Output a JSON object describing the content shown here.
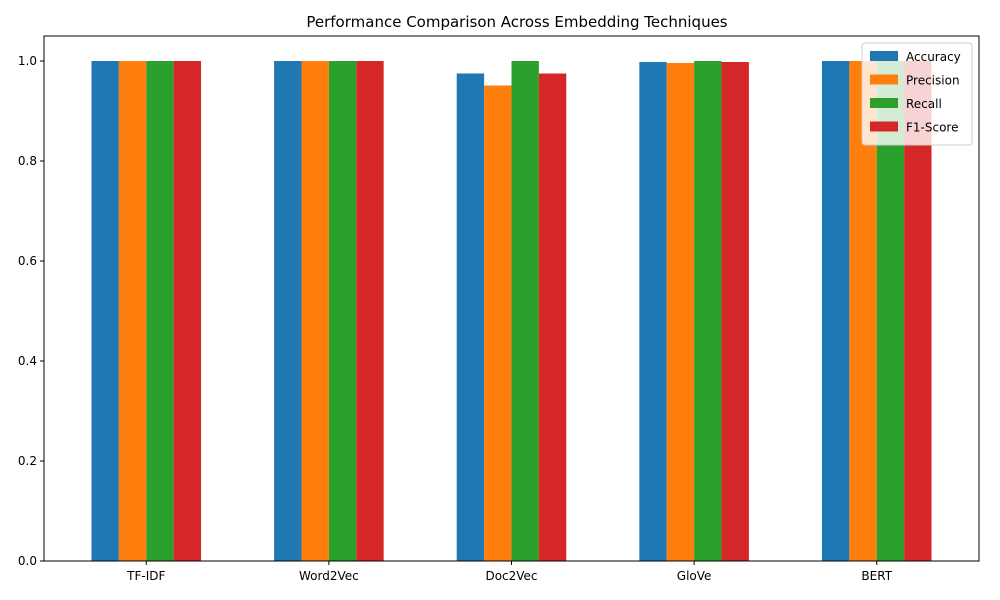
{
  "chart_data": {
    "type": "bar",
    "title": "Performance Comparison Across Embedding Techniques",
    "xlabel": "",
    "ylabel": "",
    "categories": [
      "TF-IDF",
      "Word2Vec",
      "Doc2Vec",
      "GloVe",
      "BERT"
    ],
    "series": [
      {
        "name": "Accuracy",
        "color": "#1f77b4",
        "values": [
          1.0,
          1.0,
          0.975,
          0.998,
          1.0
        ]
      },
      {
        "name": "Precision",
        "color": "#ff7f0e",
        "values": [
          1.0,
          1.0,
          0.951,
          0.996,
          1.0
        ]
      },
      {
        "name": "Recall",
        "color": "#2ca02c",
        "values": [
          1.0,
          1.0,
          1.0,
          1.0,
          1.0
        ]
      },
      {
        "name": "F1-Score",
        "color": "#d62728",
        "values": [
          1.0,
          1.0,
          0.975,
          0.998,
          1.0
        ]
      }
    ],
    "ylim": [
      0,
      1.05
    ],
    "yticks": [
      "0.0",
      "0.2",
      "0.4",
      "0.6",
      "0.8",
      "1.0"
    ],
    "grid": false,
    "legend_position": "top-right"
  }
}
